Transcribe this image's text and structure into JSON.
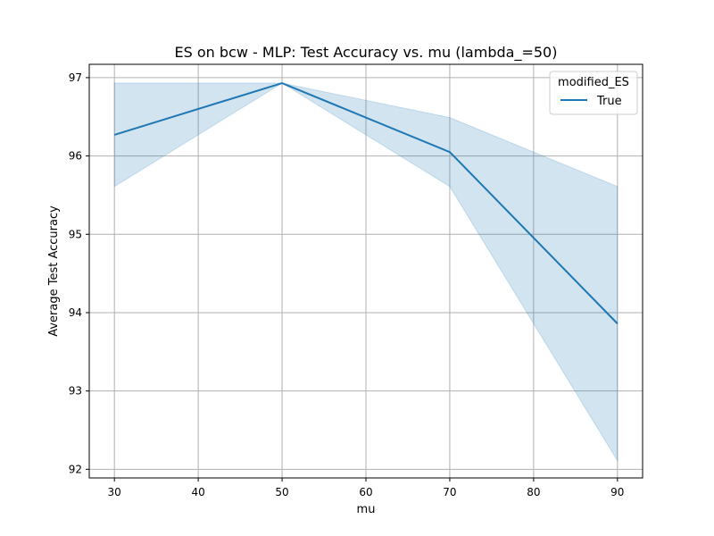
{
  "chart_data": {
    "type": "line",
    "title": "ES on bcw - MLP: Test Accuracy vs. mu (lambda_=50)",
    "xlabel": "mu",
    "ylabel": "Average Test Accuracy",
    "x": [
      30,
      50,
      70,
      90
    ],
    "xticks": [
      30,
      40,
      50,
      60,
      70,
      80,
      90
    ],
    "yticks": [
      92,
      93,
      94,
      95,
      96,
      97
    ],
    "xlim": [
      27,
      93
    ],
    "ylim": [
      91.89,
      97.17
    ],
    "grid": true,
    "legend": {
      "title": "modified_ES",
      "position": "top-right"
    },
    "series": [
      {
        "name": "True",
        "color": "#1f77b4",
        "values": [
          96.27,
          96.93,
          96.05,
          93.86
        ],
        "ci_lower": [
          95.61,
          96.93,
          95.61,
          92.11
        ],
        "ci_upper": [
          96.93,
          96.93,
          96.49,
          95.61
        ]
      }
    ]
  }
}
